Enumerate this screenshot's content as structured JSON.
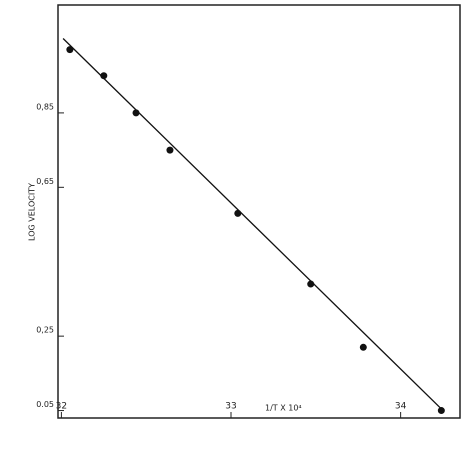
{
  "chart_data": {
    "type": "scatter",
    "x_label": "1/T X 10⁴",
    "y_label": "LOG VELOCITY",
    "x": [
      32.05,
      32.25,
      32.44,
      32.64,
      33.04,
      33.47,
      33.78,
      34.24
    ],
    "values": [
      1.02,
      0.95,
      0.85,
      0.75,
      0.58,
      0.39,
      0.22,
      0.05
    ],
    "color": "#111111",
    "fit": {
      "x": [
        32.01,
        34.25
      ],
      "values": [
        1.05,
        0.05
      ]
    },
    "xlim": [
      31.98,
      34.35
    ],
    "ylim": [
      0.03,
      1.14
    ],
    "xticks": [
      32,
      33,
      34
    ],
    "yticks": [
      {
        "value": 0.85,
        "label": "0,85"
      },
      {
        "value": 0.65,
        "label": "0,65"
      },
      {
        "value": 0.25,
        "label": "0,25"
      },
      {
        "value": 0.05,
        "label": "0.05"
      }
    ]
  }
}
